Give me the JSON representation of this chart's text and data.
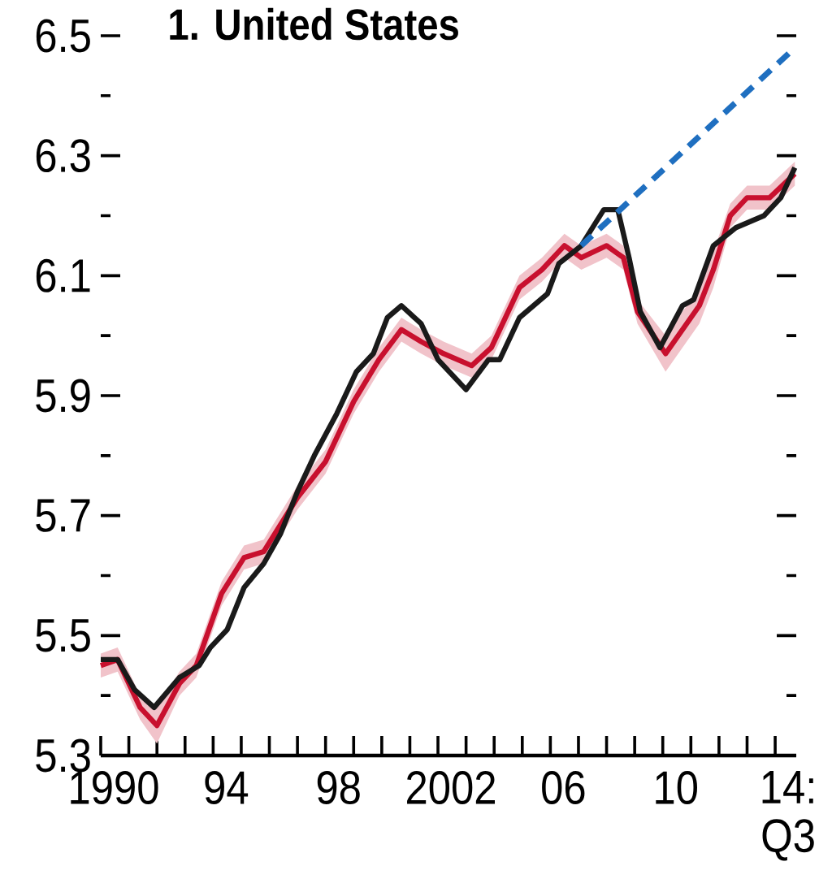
{
  "chart_data": {
    "type": "line",
    "title": "1. United States",
    "xlim": [
      1990,
      2014.75
    ],
    "ylim": [
      5.3,
      6.5
    ],
    "xticks": [
      {
        "value": 1990,
        "label": "1990"
      },
      {
        "value": 1991,
        "label": null
      },
      {
        "value": 1992,
        "label": null
      },
      {
        "value": 1993,
        "label": null
      },
      {
        "value": 1994,
        "label": "94"
      },
      {
        "value": 1995,
        "label": null
      },
      {
        "value": 1996,
        "label": null
      },
      {
        "value": 1997,
        "label": null
      },
      {
        "value": 1998,
        "label": "98"
      },
      {
        "value": 1999,
        "label": null
      },
      {
        "value": 2000,
        "label": null
      },
      {
        "value": 2001,
        "label": null
      },
      {
        "value": 2002,
        "label": "2002"
      },
      {
        "value": 2003,
        "label": null
      },
      {
        "value": 2004,
        "label": null
      },
      {
        "value": 2005,
        "label": null
      },
      {
        "value": 2006,
        "label": "06"
      },
      {
        "value": 2007,
        "label": null
      },
      {
        "value": 2008,
        "label": null
      },
      {
        "value": 2009,
        "label": null
      },
      {
        "value": 2010,
        "label": "10"
      },
      {
        "value": 2011,
        "label": null
      },
      {
        "value": 2012,
        "label": null
      },
      {
        "value": 2013,
        "label": null
      },
      {
        "value": 2014,
        "label": "14: Q3"
      }
    ],
    "yticks": [
      5.3,
      {
        "value": 5.4,
        "label": null
      },
      5.5,
      {
        "value": 5.6,
        "label": null
      },
      5.7,
      {
        "value": 5.8,
        "label": null
      },
      5.9,
      {
        "value": 6.0,
        "label": null
      },
      6.1,
      {
        "value": 6.2,
        "label": null
      },
      6.3,
      {
        "value": 6.4,
        "label": null
      },
      6.5
    ],
    "series": [
      {
        "color": "#c8102e",
        "x": [
          1990,
          1990.6,
          1991.4,
          1992.0,
          1992.8,
          1993.4,
          1994.3,
          1995.1,
          1995.8,
          1997.0,
          1998.0,
          1999.0,
          1999.9,
          2000.7,
          2001.4,
          2002.2,
          2003.2,
          2003.9,
          2004.9,
          2005.7,
          2006.5,
          2007.1,
          2008.0,
          2008.6,
          2009.1,
          2010.1,
          2011.3,
          2011.8,
          2012.4,
          2013.0,
          2013.8,
          2014.7
        ],
        "values": [
          5.45,
          5.46,
          5.38,
          5.35,
          5.42,
          5.45,
          5.57,
          5.63,
          5.64,
          5.73,
          5.79,
          5.89,
          5.96,
          6.01,
          5.99,
          5.97,
          5.95,
          5.98,
          6.08,
          6.11,
          6.15,
          6.13,
          6.15,
          6.13,
          6.04,
          5.97,
          6.05,
          6.11,
          6.2,
          6.23,
          6.23,
          6.27
        ],
        "lower": [
          5.43,
          5.44,
          5.36,
          5.32,
          5.4,
          5.43,
          5.55,
          5.61,
          5.62,
          5.71,
          5.77,
          5.87,
          5.94,
          5.99,
          5.97,
          5.95,
          5.93,
          5.96,
          6.06,
          6.09,
          6.13,
          6.11,
          6.13,
          6.11,
          6.02,
          5.94,
          6.02,
          6.08,
          6.18,
          6.21,
          6.21,
          6.25
        ],
        "upper": [
          5.47,
          5.48,
          5.4,
          5.38,
          5.44,
          5.47,
          5.59,
          5.65,
          5.66,
          5.75,
          5.81,
          5.91,
          5.98,
          6.03,
          6.01,
          5.99,
          5.97,
          6.0,
          6.1,
          6.13,
          6.17,
          6.15,
          6.17,
          6.15,
          6.06,
          6.0,
          6.08,
          6.14,
          6.22,
          6.25,
          6.25,
          6.29
        ]
      },
      {
        "color": "#1a1a1a",
        "x": [
          1990,
          1990.6,
          1991.2,
          1991.9,
          1992.8,
          1993.5,
          1993.9,
          1994.5,
          1995.1,
          1995.8,
          1996.4,
          1997.0,
          1997.6,
          1998.4,
          1999.1,
          1999.7,
          2000.2,
          2000.7,
          2001.4,
          2002.0,
          2003.0,
          2003.8,
          2004.2,
          2004.9,
          2005.9,
          2006.3,
          2007.1,
          2007.9,
          2008.4,
          2008.8,
          2009.2,
          2009.9,
          2010.7,
          2011.1,
          2011.8,
          2012.6,
          2013.6,
          2014.2,
          2014.7
        ],
        "values": [
          5.46,
          5.46,
          5.41,
          5.38,
          5.43,
          5.45,
          5.48,
          5.51,
          5.58,
          5.62,
          5.67,
          5.74,
          5.8,
          5.87,
          5.94,
          5.97,
          6.03,
          6.05,
          6.02,
          5.96,
          5.91,
          5.96,
          5.96,
          6.03,
          6.07,
          6.12,
          6.15,
          6.21,
          6.21,
          6.13,
          6.04,
          5.98,
          6.05,
          6.06,
          6.15,
          6.18,
          6.2,
          6.23,
          6.28
        ]
      },
      {
        "color": "#1f6fc0",
        "line_style": "dashed",
        "x": [
          2007.1,
          2014.7
        ],
        "values": [
          6.15,
          6.48
        ]
      }
    ]
  }
}
